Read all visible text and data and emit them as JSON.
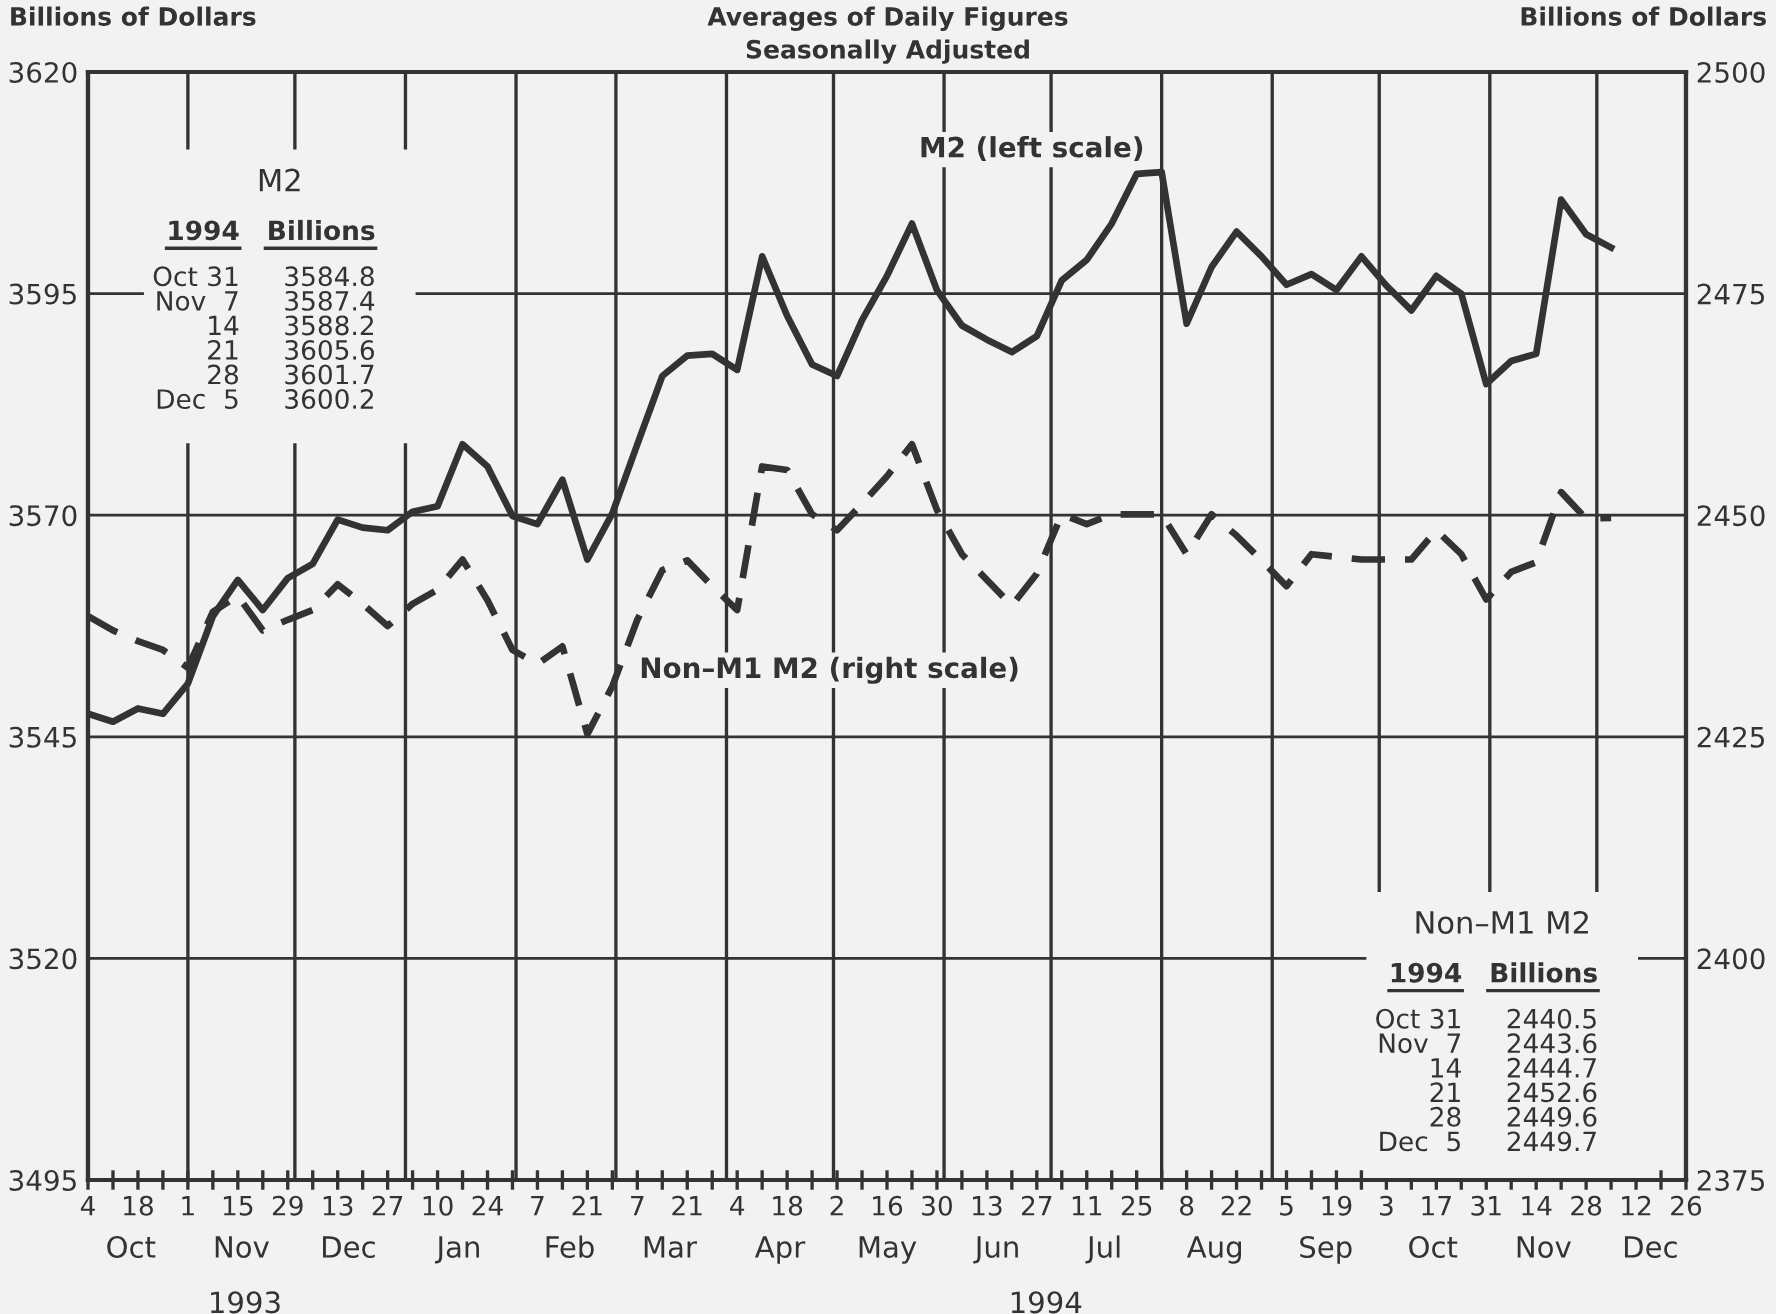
{
  "chart_data": {
    "type": "line",
    "title": "Averages of Daily Figures",
    "subtitle": "Seasonally Adjusted",
    "ylabel": "Billions of Dollars",
    "y2label": "Billions of Dollars",
    "x": [
      "1993-10-04",
      "1993-10-11",
      "1993-10-18",
      "1993-10-25",
      "1993-11-01",
      "1993-11-08",
      "1993-11-15",
      "1993-11-22",
      "1993-11-29",
      "1993-12-06",
      "1993-12-13",
      "1993-12-20",
      "1993-12-27",
      "1994-01-03",
      "1994-01-10",
      "1994-01-17",
      "1994-01-24",
      "1994-01-31",
      "1994-02-07",
      "1994-02-14",
      "1994-02-21",
      "1994-02-28",
      "1994-03-07",
      "1994-03-14",
      "1994-03-21",
      "1994-03-28",
      "1994-04-04",
      "1994-04-11",
      "1994-04-18",
      "1994-04-25",
      "1994-05-02",
      "1994-05-09",
      "1994-05-16",
      "1994-05-23",
      "1994-05-30",
      "1994-06-06",
      "1994-06-13",
      "1994-06-20",
      "1994-06-27",
      "1994-07-04",
      "1994-07-11",
      "1994-07-18",
      "1994-07-25",
      "1994-08-01",
      "1994-08-08",
      "1994-08-15",
      "1994-08-22",
      "1994-08-29",
      "1994-09-05",
      "1994-09-12",
      "1994-09-19",
      "1994-09-26",
      "1994-10-03",
      "1994-10-10",
      "1994-10-17",
      "1994-10-24",
      "1994-10-31",
      "1994-11-07",
      "1994-11-14",
      "1994-11-21",
      "1994-11-28",
      "1994-12-05"
    ],
    "series": [
      {
        "name": "M2 (left scale)",
        "color": "#333333",
        "line_style": "solid",
        "values": [
          3547.6,
          3546.7,
          3548.2,
          3547.6,
          3551,
          3558.6,
          3562.7,
          3559.3,
          3562.9,
          3564.5,
          3569.5,
          3568.6,
          3568.3,
          3570.4,
          3571,
          3578,
          3575.5,
          3569.9,
          3569,
          3574,
          3565,
          3570.2,
          3578,
          3585.7,
          3588,
          3588.2,
          3586.4,
          3599.2,
          3592.5,
          3587,
          3585.7,
          3592,
          3597,
          3602.9,
          3595.4,
          3591.4,
          3589.8,
          3588.4,
          3590.2,
          3596.5,
          3598.8,
          3602.9,
          3608.5,
          3608.7,
          3591.6,
          3598,
          3602,
          3599.2,
          3596,
          3597.2,
          3595.4,
          3599.2,
          3595.9,
          3593.1,
          3597,
          3595,
          3584.8,
          3587.4,
          3588.2,
          3605.6,
          3601.7,
          3600.2
        ]
      },
      {
        "name": "Non–M1 M2 (right scale)",
        "color": "#333333",
        "line_style": "dashed",
        "axis": "y2",
        "values": [
          2438.6,
          2437,
          2435.8,
          2434.8,
          2432.8,
          2439.1,
          2440.9,
          2437,
          2438.2,
          2439.3,
          2442.2,
          2440,
          2437.5,
          2440,
          2441.6,
          2445,
          2440.4,
          2434.8,
          2433.2,
          2435.2,
          2425.3,
          2430.7,
          2438.2,
          2443.8,
          2444.9,
          2442,
          2439.3,
          2455.5,
          2455.1,
          2450.1,
          2448.3,
          2451.3,
          2454.4,
          2458,
          2450.6,
          2445.6,
          2442.7,
          2439.8,
          2443.4,
          2450.1,
          2449,
          2450.1,
          2450.1,
          2450.1,
          2445.6,
          2450.1,
          2447.7,
          2444.9,
          2442,
          2445.6,
          2445.3,
          2445,
          2445,
          2445,
          2448.3,
          2445.6,
          2440.5,
          2443.6,
          2444.7,
          2452.6,
          2449.6,
          2449.7
        ]
      }
    ],
    "xlim": [
      "1993-10-04",
      "1994-12-26"
    ],
    "xticks": [
      {
        "value": "1993-10-04",
        "label": "4"
      },
      {
        "value": "1993-10-11",
        "label": null
      },
      {
        "value": "1993-10-18",
        "label": "18"
      },
      {
        "value": "1993-10-25",
        "label": null
      },
      {
        "value": "1993-11-01",
        "label": "1"
      },
      {
        "value": "1993-11-08",
        "label": null
      },
      {
        "value": "1993-11-15",
        "label": "15"
      },
      {
        "value": "1993-11-22",
        "label": null
      },
      {
        "value": "1993-11-29",
        "label": "29"
      },
      {
        "value": "1993-12-06",
        "label": null
      },
      {
        "value": "1993-12-13",
        "label": "13"
      },
      {
        "value": "1993-12-20",
        "label": null
      },
      {
        "value": "1993-12-27",
        "label": "27"
      },
      {
        "value": "1994-01-03",
        "label": null
      },
      {
        "value": "1994-01-10",
        "label": "10"
      },
      {
        "value": "1994-01-17",
        "label": null
      },
      {
        "value": "1994-01-24",
        "label": "24"
      },
      {
        "value": "1994-01-31",
        "label": null
      },
      {
        "value": "1994-02-07",
        "label": "7"
      },
      {
        "value": "1994-02-14",
        "label": null
      },
      {
        "value": "1994-02-21",
        "label": "21"
      },
      {
        "value": "1994-02-28",
        "label": null
      },
      {
        "value": "1994-03-07",
        "label": "7"
      },
      {
        "value": "1994-03-14",
        "label": null
      },
      {
        "value": "1994-03-21",
        "label": "21"
      },
      {
        "value": "1994-03-28",
        "label": null
      },
      {
        "value": "1994-04-04",
        "label": "4"
      },
      {
        "value": "1994-04-11",
        "label": null
      },
      {
        "value": "1994-04-18",
        "label": "18"
      },
      {
        "value": "1994-04-25",
        "label": null
      },
      {
        "value": "1994-05-02",
        "label": "2"
      },
      {
        "value": "1994-05-09",
        "label": null
      },
      {
        "value": "1994-05-16",
        "label": "16"
      },
      {
        "value": "1994-05-23",
        "label": null
      },
      {
        "value": "1994-05-30",
        "label": "30"
      },
      {
        "value": "1994-06-06",
        "label": null
      },
      {
        "value": "1994-06-13",
        "label": "13"
      },
      {
        "value": "1994-06-20",
        "label": null
      },
      {
        "value": "1994-06-27",
        "label": "27"
      },
      {
        "value": "1994-07-04",
        "label": null
      },
      {
        "value": "1994-07-11",
        "label": "11"
      },
      {
        "value": "1994-07-18",
        "label": null
      },
      {
        "value": "1994-07-25",
        "label": "25"
      },
      {
        "value": "1994-08-01",
        "label": null
      },
      {
        "value": "1994-08-08",
        "label": "8"
      },
      {
        "value": "1994-08-15",
        "label": null
      },
      {
        "value": "1994-08-22",
        "label": "22"
      },
      {
        "value": "1994-08-29",
        "label": null
      },
      {
        "value": "1994-09-05",
        "label": "5"
      },
      {
        "value": "1994-09-12",
        "label": null
      },
      {
        "value": "1994-09-19",
        "label": "19"
      },
      {
        "value": "1994-09-26",
        "label": null
      },
      {
        "value": "1994-10-03",
        "label": "3"
      },
      {
        "value": "1994-10-10",
        "label": null
      },
      {
        "value": "1994-10-17",
        "label": "17"
      },
      {
        "value": "1994-10-24",
        "label": null
      },
      {
        "value": "1994-10-31",
        "label": "31"
      },
      {
        "value": "1994-11-07",
        "label": null
      },
      {
        "value": "1994-11-14",
        "label": "14"
      },
      {
        "value": "1994-11-21",
        "label": null
      },
      {
        "value": "1994-11-28",
        "label": "28"
      },
      {
        "value": "1994-12-05",
        "label": null
      },
      {
        "value": "1994-12-12",
        "label": "12"
      },
      {
        "value": "1994-12-19",
        "label": null
      },
      {
        "value": "1994-12-26",
        "label": "26"
      }
    ],
    "ylim": [
      3495,
      3620
    ],
    "yticks": [
      3495,
      3520,
      3545,
      3570,
      3595,
      3620
    ],
    "y2lim": [
      2375,
      2500
    ],
    "y2ticks": [
      2375,
      2400,
      2425,
      2450,
      2475,
      2500
    ],
    "grid": "y",
    "legend": false,
    "ref_lines": [
      {
        "axis": "x",
        "value": "1993-11-01",
        "color": "#333333"
      },
      {
        "axis": "x",
        "value": "1993-12-01",
        "color": "#333333"
      },
      {
        "axis": "x",
        "value": "1994-01-01",
        "color": "#333333"
      },
      {
        "axis": "x",
        "value": "1994-02-01",
        "color": "#333333"
      },
      {
        "axis": "x",
        "value": "1994-03-01",
        "color": "#333333"
      },
      {
        "axis": "x",
        "value": "1994-04-01",
        "color": "#333333"
      },
      {
        "axis": "x",
        "value": "1994-05-01",
        "color": "#333333"
      },
      {
        "axis": "x",
        "value": "1994-06-01",
        "color": "#333333"
      },
      {
        "axis": "x",
        "value": "1994-07-01",
        "color": "#333333"
      },
      {
        "axis": "x",
        "value": "1994-08-01",
        "color": "#333333"
      },
      {
        "axis": "x",
        "value": "1994-09-01",
        "color": "#333333"
      },
      {
        "axis": "x",
        "value": "1994-10-01",
        "color": "#333333"
      },
      {
        "axis": "x",
        "value": "1994-11-01",
        "color": "#333333"
      },
      {
        "axis": "x",
        "value": "1994-12-01",
        "color": "#333333"
      }
    ],
    "annotations": [
      "M2",
      "1994",
      "Billions",
      "Oct 31\nNov  7\n14\n21\n28\nDec  5",
      "3584.8\n3587.4\n3588.2\n3605.6\n3601.7\n3600.2",
      "Non–M1 M2",
      "1994",
      "Billions",
      "Oct 31\nNov  7\n14\n21\n28\nDec  5",
      "2440.5\n2443.6\n2444.7\n2452.6\n2449.6\n2449.7",
      "Oct",
      "Nov",
      "Dec",
      "Jan",
      "Feb",
      "Mar",
      "Apr",
      "May",
      "Jun",
      "Jul",
      "Aug",
      "Sep",
      "Oct",
      "Nov",
      "Dec",
      "1993",
      "1994"
    ]
  }
}
